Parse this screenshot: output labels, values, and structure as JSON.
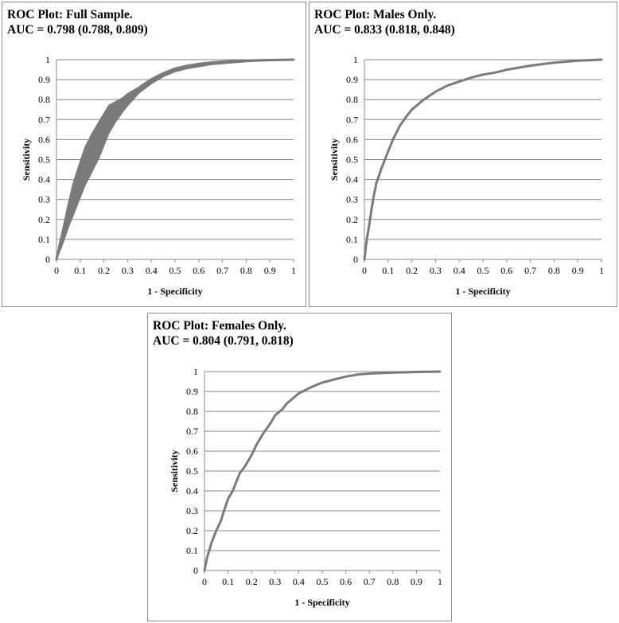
{
  "chart_data": [
    {
      "id": "full",
      "type": "line",
      "title": "ROC Plot:  Full Sample.",
      "subtitle": "AUC = 0.798 (0.788, 0.809)",
      "xlabel": "1 - Specificity",
      "ylabel": "Sensitivity",
      "xlim": [
        0,
        1
      ],
      "ylim": [
        0,
        1
      ],
      "xticks": [
        "0",
        "0.1",
        "0.2",
        "0.3",
        "0.4",
        "0.5",
        "0.6",
        "0.7",
        "0.8",
        "0.9",
        "1"
      ],
      "yticks": [
        "0",
        "0.1",
        "0.2",
        "0.3",
        "0.4",
        "0.5",
        "0.6",
        "0.7",
        "0.8",
        "0.9",
        "1"
      ],
      "grid": true,
      "line_color": "#7a7a7a",
      "series": [
        {
          "x": [
            0,
            0.01,
            0.02,
            0.03,
            0.05,
            0.07,
            0.1,
            0.12,
            0.15,
            0.18,
            0.2,
            0.22,
            0.25,
            0.28,
            0.3,
            0.33,
            0.35,
            0.4,
            0.45,
            0.5,
            0.55,
            0.6,
            0.65,
            0.7,
            0.75,
            0.8,
            0.85,
            0.9,
            0.95,
            1.0
          ],
          "y": [
            0,
            0.05,
            0.09,
            0.13,
            0.22,
            0.3,
            0.4,
            0.46,
            0.53,
            0.6,
            0.65,
            0.7,
            0.74,
            0.78,
            0.8,
            0.83,
            0.85,
            0.9,
            0.93,
            0.95,
            0.965,
            0.975,
            0.983,
            0.988,
            0.992,
            0.995,
            0.997,
            0.998,
            0.999,
            1.0
          ],
          "y_low": [
            0,
            0.03,
            0.06,
            0.09,
            0.16,
            0.22,
            0.31,
            0.37,
            0.44,
            0.51,
            0.57,
            0.63,
            0.69,
            0.74,
            0.77,
            0.81,
            0.835,
            0.88,
            0.915,
            0.94,
            0.955,
            0.965,
            0.975,
            0.98,
            0.985,
            0.99,
            0.993,
            0.995,
            0.997,
            1.0
          ],
          "y_high": [
            0,
            0.07,
            0.12,
            0.17,
            0.28,
            0.38,
            0.49,
            0.56,
            0.63,
            0.69,
            0.73,
            0.77,
            0.79,
            0.81,
            0.83,
            0.85,
            0.865,
            0.905,
            0.935,
            0.958,
            0.972,
            0.982,
            0.988,
            0.993,
            0.996,
            0.998,
            0.999,
            1.0,
            1.0,
            1.0
          ]
        }
      ]
    },
    {
      "id": "males",
      "type": "line",
      "title": "ROC Plot:  Males Only.",
      "subtitle": "AUC = 0.833 (0.818, 0.848)",
      "xlabel": "1 - Specificity",
      "ylabel": "Sensitivity",
      "xlim": [
        0,
        1
      ],
      "ylim": [
        0,
        1
      ],
      "xticks": [
        "0",
        "0.1",
        "0.2",
        "0.3",
        "0.4",
        "0.5",
        "0.6",
        "0.7",
        "0.8",
        "0.9",
        "1"
      ],
      "yticks": [
        "0",
        "0.1",
        "0.2",
        "0.3",
        "0.4",
        "0.5",
        "0.6",
        "0.7",
        "0.8",
        "0.9",
        "1"
      ],
      "grid": true,
      "line_color": "#7a7a7a",
      "series": [
        {
          "x": [
            0,
            0.005,
            0.01,
            0.02,
            0.03,
            0.04,
            0.05,
            0.07,
            0.09,
            0.1,
            0.12,
            0.15,
            0.18,
            0.2,
            0.25,
            0.3,
            0.35,
            0.4,
            0.45,
            0.5,
            0.55,
            0.6,
            0.7,
            0.8,
            0.9,
            1.0
          ],
          "y": [
            0,
            0.05,
            0.1,
            0.17,
            0.25,
            0.32,
            0.38,
            0.45,
            0.51,
            0.54,
            0.6,
            0.67,
            0.72,
            0.75,
            0.8,
            0.84,
            0.87,
            0.89,
            0.91,
            0.925,
            0.935,
            0.95,
            0.97,
            0.985,
            0.995,
            1.0
          ]
        }
      ]
    },
    {
      "id": "females",
      "type": "line",
      "title": "ROC Plot:  Females Only.",
      "subtitle": "AUC = 0.804 (0.791, 0.818)",
      "xlabel": "1 - Specificity",
      "ylabel": "Sensitivity",
      "xlim": [
        0,
        1
      ],
      "ylim": [
        0,
        1
      ],
      "xticks": [
        "0",
        "0.1",
        "0.2",
        "0.3",
        "0.4",
        "0.5",
        "0.6",
        "0.7",
        "0.8",
        "0.9",
        "1"
      ],
      "yticks": [
        "0",
        "0.1",
        "0.2",
        "0.3",
        "0.4",
        "0.5",
        "0.6",
        "0.7",
        "0.8",
        "0.9",
        "1"
      ],
      "grid": true,
      "line_color": "#7a7a7a",
      "series": [
        {
          "x": [
            0,
            0.01,
            0.02,
            0.03,
            0.05,
            0.07,
            0.08,
            0.1,
            0.12,
            0.14,
            0.15,
            0.17,
            0.2,
            0.22,
            0.25,
            0.28,
            0.3,
            0.33,
            0.35,
            0.4,
            0.45,
            0.5,
            0.55,
            0.6,
            0.65,
            0.7,
            0.8,
            0.9,
            1.0
          ],
          "y": [
            0,
            0.06,
            0.1,
            0.14,
            0.2,
            0.25,
            0.29,
            0.36,
            0.4,
            0.46,
            0.49,
            0.52,
            0.58,
            0.63,
            0.69,
            0.74,
            0.78,
            0.81,
            0.84,
            0.89,
            0.92,
            0.945,
            0.96,
            0.975,
            0.985,
            0.99,
            0.995,
            0.998,
            1.0
          ]
        }
      ]
    }
  ]
}
